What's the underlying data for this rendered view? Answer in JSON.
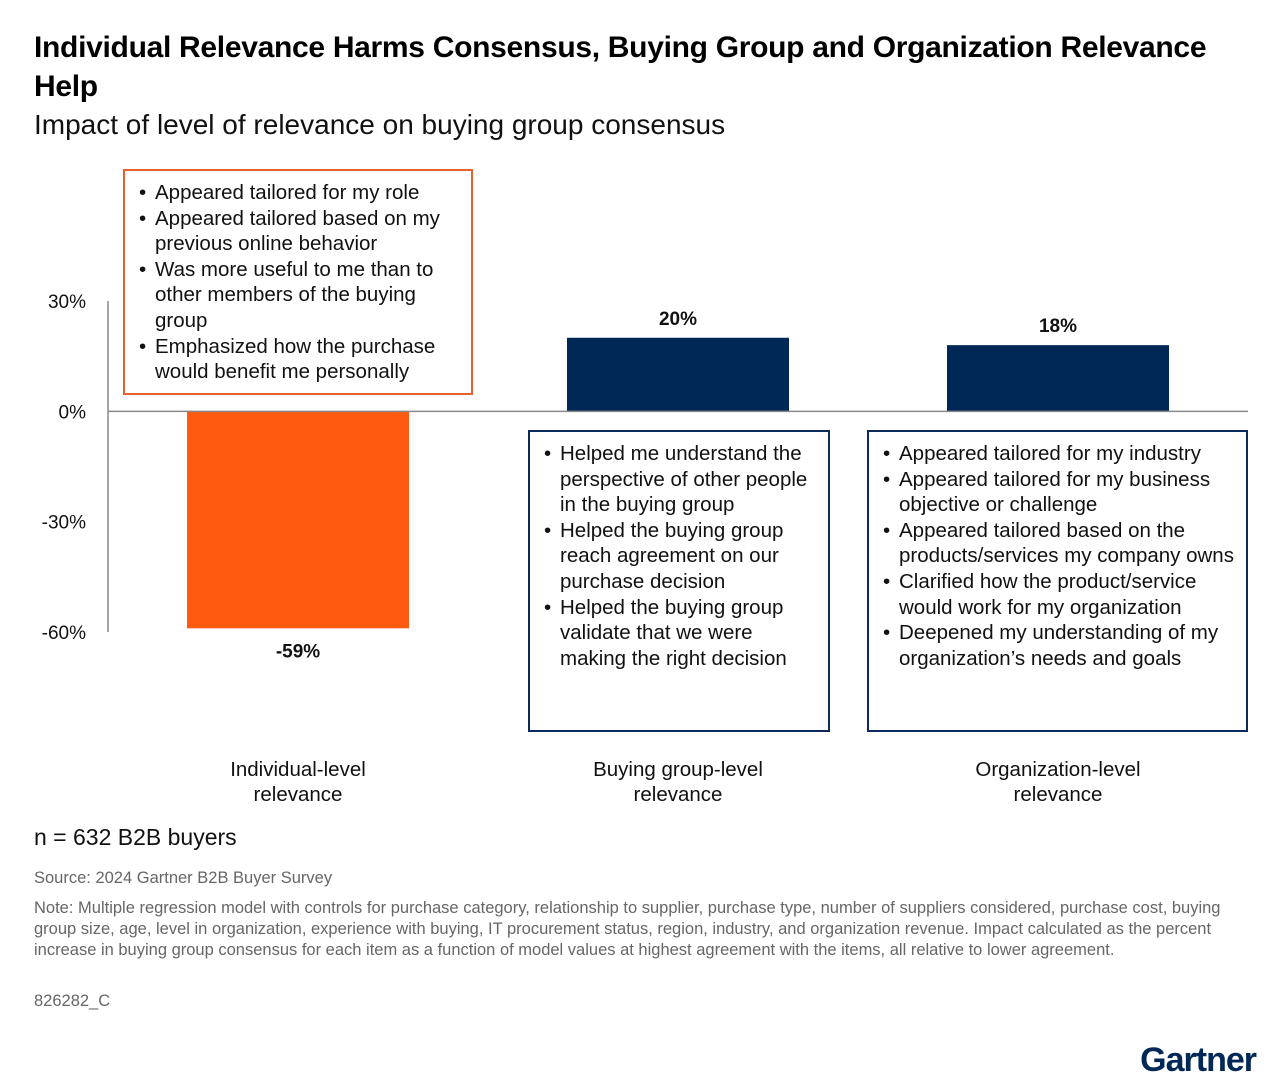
{
  "header": {
    "title": "Individual Relevance Harms Consensus, Buying Group and Organization Relevance Help",
    "subtitle": "Impact of level of relevance on buying group consensus"
  },
  "colors": {
    "negative_bar": "#ff5a0f",
    "positive_bar": "#002856",
    "axis": "#888888",
    "orange_border": "#e8612c",
    "navy_border": "#0a2a5c"
  },
  "chart_data": {
    "type": "bar",
    "title": "Impact of level of relevance on buying group consensus",
    "categories": [
      "Individual-level relevance",
      "Buying group-level relevance",
      "Organization-level relevance"
    ],
    "values": [
      -59,
      20,
      18
    ],
    "value_labels": [
      "-59%",
      "20%",
      "18%"
    ],
    "y_ticks": [
      30,
      0,
      -30,
      -60
    ],
    "y_tick_labels": [
      "30%",
      "0%",
      "-30%",
      "-60%"
    ],
    "ylim": [
      -60,
      30
    ],
    "xlabel": "",
    "ylabel": "",
    "grid": false,
    "legend": "none"
  },
  "callouts": [
    {
      "items": [
        "Appeared tailored for my role",
        "Appeared tailored based on my previous online behavior",
        "Was more useful to me than to other members of the buying group",
        "Emphasized how the purchase would benefit me personally"
      ]
    },
    {
      "items": [
        "Helped me understand the perspective of other people in the buying group",
        "Helped the buying group reach agreement on our purchase decision",
        "Helped the buying group validate that we were making the right decision"
      ]
    },
    {
      "items": [
        "Appeared tailored for my industry",
        "Appeared tailored for my business objective or challenge",
        "Appeared tailored based on the products/services my company owns",
        "Clarified how the product/service would work for my organization",
        "Deepened my understanding of my organization’s needs and goals"
      ]
    }
  ],
  "category_labels": [
    {
      "line1": "Individual-level",
      "line2": "relevance"
    },
    {
      "line1": "Buying group-level",
      "line2": "relevance"
    },
    {
      "line1": "Organization-level",
      "line2": "relevance"
    }
  ],
  "footer": {
    "sample": "n = 632 B2B buyers",
    "source": "Source: 2024 Gartner B2B Buyer Survey",
    "note": "Note: Multiple regression model with controls for purchase category, relationship to supplier, purchase type, number of suppliers considered, purchase cost, buying group size, age, level in organization, experience with buying, IT procurement status, region, industry, and organization revenue. Impact calculated as the percent increase in buying group consensus for each item as a function of model values at highest agreement with the items, all relative to lower agreement.",
    "doc_id": "826282_C",
    "logo": "Gartner"
  }
}
